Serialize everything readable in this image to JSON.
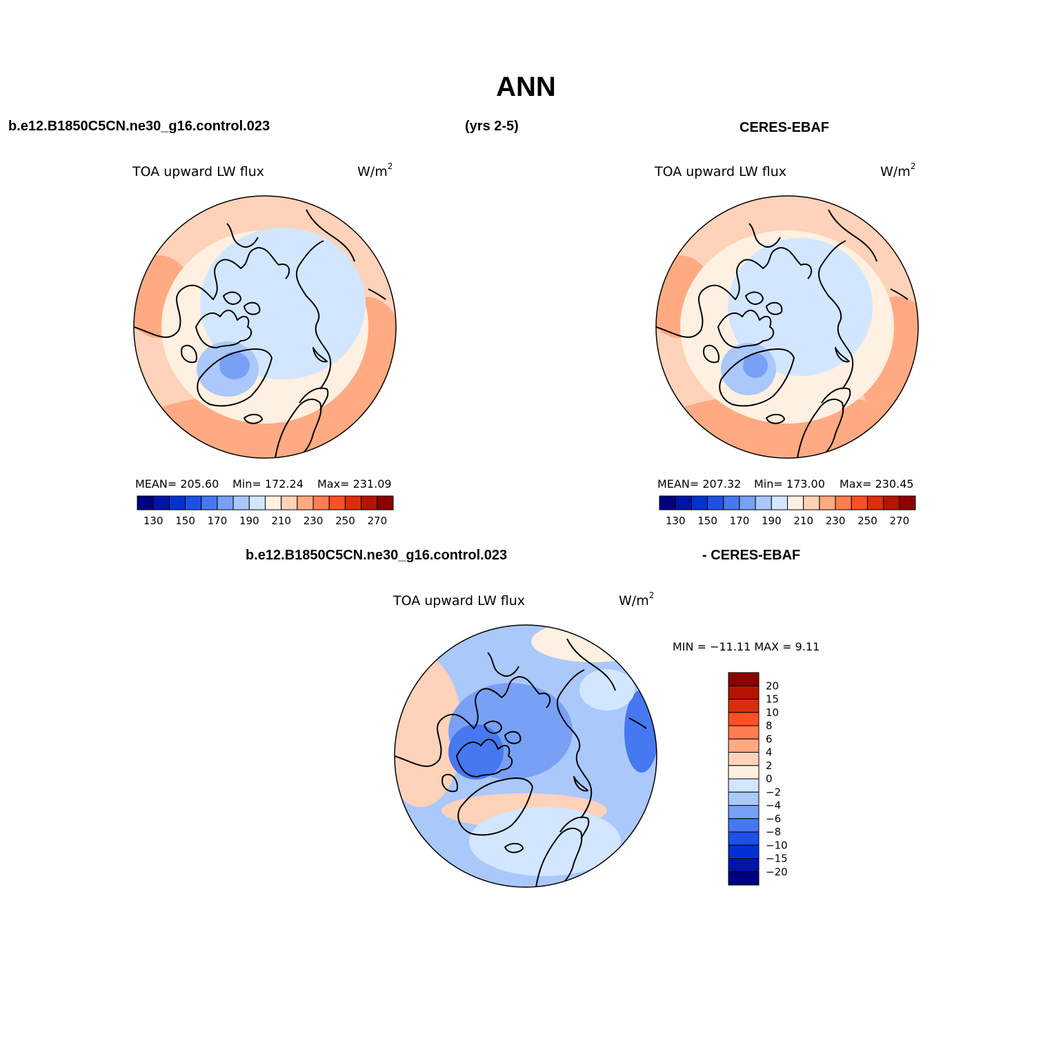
{
  "figure": {
    "title": "ANN",
    "case_name": "b.e12.B1850C5CN.ne30_g16.control.023",
    "years": "(yrs 2-5)",
    "obs_name": "CERES-EBAF",
    "diff_case_name": "b.e12.B1850C5CN.ne30_g16.control.023",
    "diff_obs_name": "- CERES-EBAF"
  },
  "panels": {
    "model": {
      "variable": "TOA upward LW flux",
      "units_base": "W/m",
      "units_exp": "2",
      "mean_label": "MEAN= 205.60",
      "min_label": "Min= 172.24",
      "max_label": "Max= 231.09"
    },
    "obs": {
      "variable": "TOA upward LW flux",
      "units_base": "W/m",
      "units_exp": "2",
      "mean_label": "MEAN= 207.32",
      "min_label": "Min= 173.00",
      "max_label": "Max= 230.45"
    },
    "diff": {
      "variable": "TOA upward LW flux",
      "units_base": "W/m",
      "units_exp": "2",
      "minmax_label": "MIN = −11.11 MAX =    9.11"
    }
  },
  "colorbars": {
    "abs": {
      "colors": [
        "#000080",
        "#0014a8",
        "#0032d2",
        "#1e50e6",
        "#4678f0",
        "#78a0f5",
        "#aac8fa",
        "#d2e6ff",
        "#fff0e1",
        "#ffd2b9",
        "#ffaa82",
        "#ff7d50",
        "#fa5023",
        "#dc2d0a",
        "#b41400",
        "#8c0000"
      ],
      "tick_labels": [
        "130",
        "150",
        "170",
        "190",
        "210",
        "230",
        "250",
        "270"
      ]
    },
    "diff": {
      "colors": [
        "#8c0000",
        "#b41400",
        "#dc2d0a",
        "#fa5023",
        "#ff7d50",
        "#ffaa82",
        "#ffd2b9",
        "#fff0e1",
        "#d2e6ff",
        "#aac8fa",
        "#78a0f5",
        "#4678f0",
        "#1e50e6",
        "#0032d2",
        "#0014a8",
        "#000080"
      ],
      "tick_labels": [
        "20",
        "15",
        "10",
        "8",
        "6",
        "4",
        "2",
        "0",
        "−2",
        "−4",
        "−6",
        "−8",
        "−10",
        "−15",
        "−20"
      ]
    }
  }
}
